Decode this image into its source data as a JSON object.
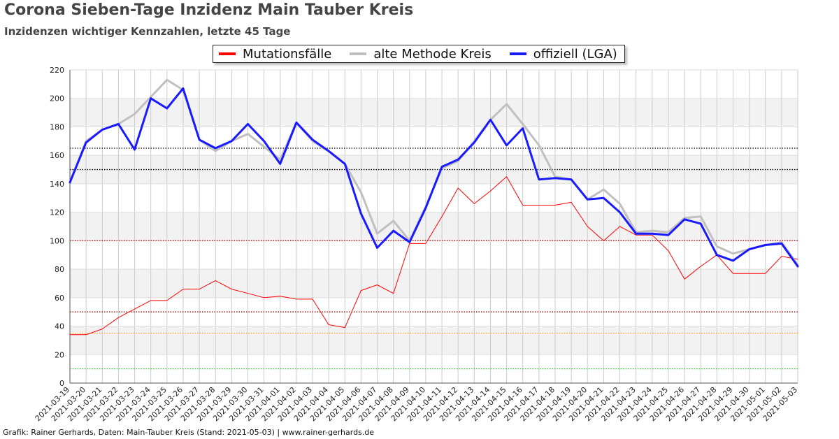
{
  "header": {
    "title": "Corona Sieben-Tage Inzidenz Main Tauber Kreis",
    "subtitle": "Inzidenzen wichtiger Kennzahlen, letzte 45 Tage"
  },
  "footer": {
    "text": "Grafik: Rainer Gerhards, Daten: Main-Tauber Kreis (Stand: 2021-05-03) | www.rainer-gerhards.de"
  },
  "colors": {
    "mutation": "#ff0000",
    "old_method": "#c0c0c0",
    "official": "#1a1aff"
  },
  "chart_data": {
    "type": "line",
    "title": "Corona Sieben-Tage Inzidenz Main Tauber Kreis",
    "subtitle": "Inzidenzen wichtiger Kennzahlen, letzte 45 Tage",
    "xlabel": "",
    "ylabel": "",
    "ylim": [
      0,
      220
    ],
    "yticks": [
      0,
      20,
      40,
      60,
      80,
      100,
      120,
      140,
      160,
      180,
      200,
      220
    ],
    "grid": true,
    "legend_position": "top-center",
    "x": [
      "2021-03-19",
      "2021-03-20",
      "2021-03-21",
      "2021-03-22",
      "2021-03-23",
      "2021-03-24",
      "2021-03-25",
      "2021-03-26",
      "2021-03-27",
      "2021-03-28",
      "2021-03-29",
      "2021-03-30",
      "2021-03-31",
      "2021-04-01",
      "2021-04-02",
      "2021-04-03",
      "2021-04-04",
      "2021-04-05",
      "2021-04-06",
      "2021-04-07",
      "2021-04-08",
      "2021-04-09",
      "2021-04-10",
      "2021-04-11",
      "2021-04-12",
      "2021-04-13",
      "2021-04-14",
      "2021-04-15",
      "2021-04-16",
      "2021-04-17",
      "2021-04-18",
      "2021-04-19",
      "2021-04-20",
      "2021-04-21",
      "2021-04-22",
      "2021-04-23",
      "2021-04-24",
      "2021-04-25",
      "2021-04-26",
      "2021-04-27",
      "2021-04-28",
      "2021-04-29",
      "2021-04-30",
      "2021-05-01",
      "2021-05-02",
      "2021-05-03"
    ],
    "series": [
      {
        "name": "Mutationsfälle",
        "values": [
          34,
          34,
          38,
          46,
          52,
          58,
          58,
          66,
          66,
          72,
          66,
          63,
          60,
          61,
          59,
          59,
          41,
          39,
          65,
          69,
          63,
          98,
          98,
          117,
          137,
          126,
          135,
          145,
          125,
          125,
          125,
          127,
          110,
          100,
          110,
          104,
          104,
          93,
          73,
          82,
          90,
          77,
          77,
          77,
          89,
          87
        ]
      },
      {
        "name": "alte Methode Kreis",
        "values": [
          141,
          170,
          178,
          182,
          189,
          201,
          213,
          206,
          171,
          163,
          170,
          175,
          166,
          157,
          183,
          170,
          163,
          154,
          134,
          105,
          114,
          100,
          124,
          151,
          156,
          170,
          185,
          196,
          182,
          167,
          145,
          143,
          129,
          136,
          126,
          106,
          107,
          106,
          116,
          117,
          96,
          91,
          94,
          97,
          99,
          83
        ]
      },
      {
        "name": "offiziell (LGA)",
        "values": [
          141,
          169,
          178,
          182,
          164,
          200,
          193,
          207,
          171,
          165,
          170,
          182,
          170,
          154,
          183,
          171,
          163,
          154,
          119,
          95,
          107,
          99,
          123,
          152,
          157,
          169,
          185,
          167,
          179,
          143,
          144,
          143,
          129,
          130,
          120,
          105,
          105,
          104,
          115,
          112,
          90,
          86,
          94,
          97,
          98,
          82
        ]
      }
    ],
    "reference_lines": [
      {
        "value": 165,
        "color": "#000000"
      },
      {
        "value": 150,
        "color": "#000000"
      },
      {
        "value": 100,
        "color": "#aa0000"
      },
      {
        "value": 50,
        "color": "#aa0000"
      },
      {
        "value": 35,
        "color": "#ffa500"
      },
      {
        "value": 10,
        "color": "#22cc22"
      }
    ]
  }
}
